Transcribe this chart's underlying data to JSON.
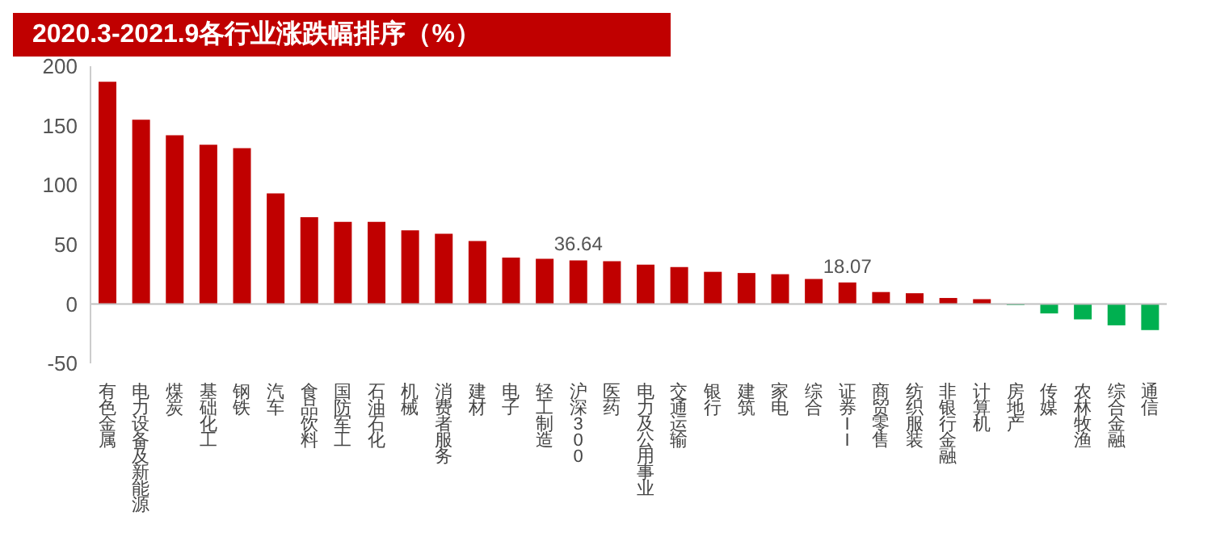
{
  "chart_data": {
    "type": "bar",
    "title": "2020.3-2021.9各行业涨跌幅排序（%）",
    "categories": [
      "有色金属",
      "电力设备及新能源",
      "煤炭",
      "基础化工",
      "钢铁",
      "汽车",
      "食品饮料",
      "国防军工",
      "石油石化",
      "机械",
      "消费者服务",
      "建材",
      "电子",
      "轻工制造",
      "沪深300",
      "医药",
      "电力及公用事业",
      "交通运输",
      "银行",
      "建筑",
      "家电",
      "综合",
      "证券II",
      "商贸零售",
      "纺织服装",
      "非银行金融",
      "计算机",
      "房地产",
      "传媒",
      "农林牧渔",
      "综合金融",
      "通信"
    ],
    "values": [
      187,
      155,
      142,
      134,
      131,
      93,
      73,
      69,
      69,
      62,
      59,
      53,
      39,
      38,
      36.64,
      36,
      33,
      31,
      27,
      26,
      25,
      21,
      18.07,
      10,
      9,
      5,
      4,
      -1,
      -8,
      -13,
      -18,
      -22
    ],
    "colors": [
      "#c00000",
      "#c00000",
      "#c00000",
      "#c00000",
      "#c00000",
      "#c00000",
      "#c00000",
      "#c00000",
      "#c00000",
      "#c00000",
      "#c00000",
      "#c00000",
      "#c00000",
      "#c00000",
      "#c00000",
      "#c00000",
      "#c00000",
      "#c00000",
      "#c00000",
      "#c00000",
      "#c00000",
      "#c00000",
      "#c00000",
      "#c00000",
      "#c00000",
      "#c00000",
      "#c00000",
      "#00b050",
      "#00b050",
      "#00b050",
      "#00b050",
      "#00b050"
    ],
    "value_labels": [
      null,
      null,
      null,
      null,
      null,
      null,
      null,
      null,
      null,
      null,
      null,
      null,
      null,
      null,
      "36.64",
      null,
      null,
      null,
      null,
      null,
      null,
      null,
      "18.07",
      null,
      null,
      null,
      null,
      null,
      null,
      null,
      null,
      null
    ],
    "ylim": [
      -50,
      200
    ],
    "yticks": [
      -50,
      0,
      50,
      100,
      150,
      200
    ],
    "ref_lines": [
      {
        "axis": "y",
        "value": 0,
        "color": "#bfbfbf"
      }
    ]
  }
}
